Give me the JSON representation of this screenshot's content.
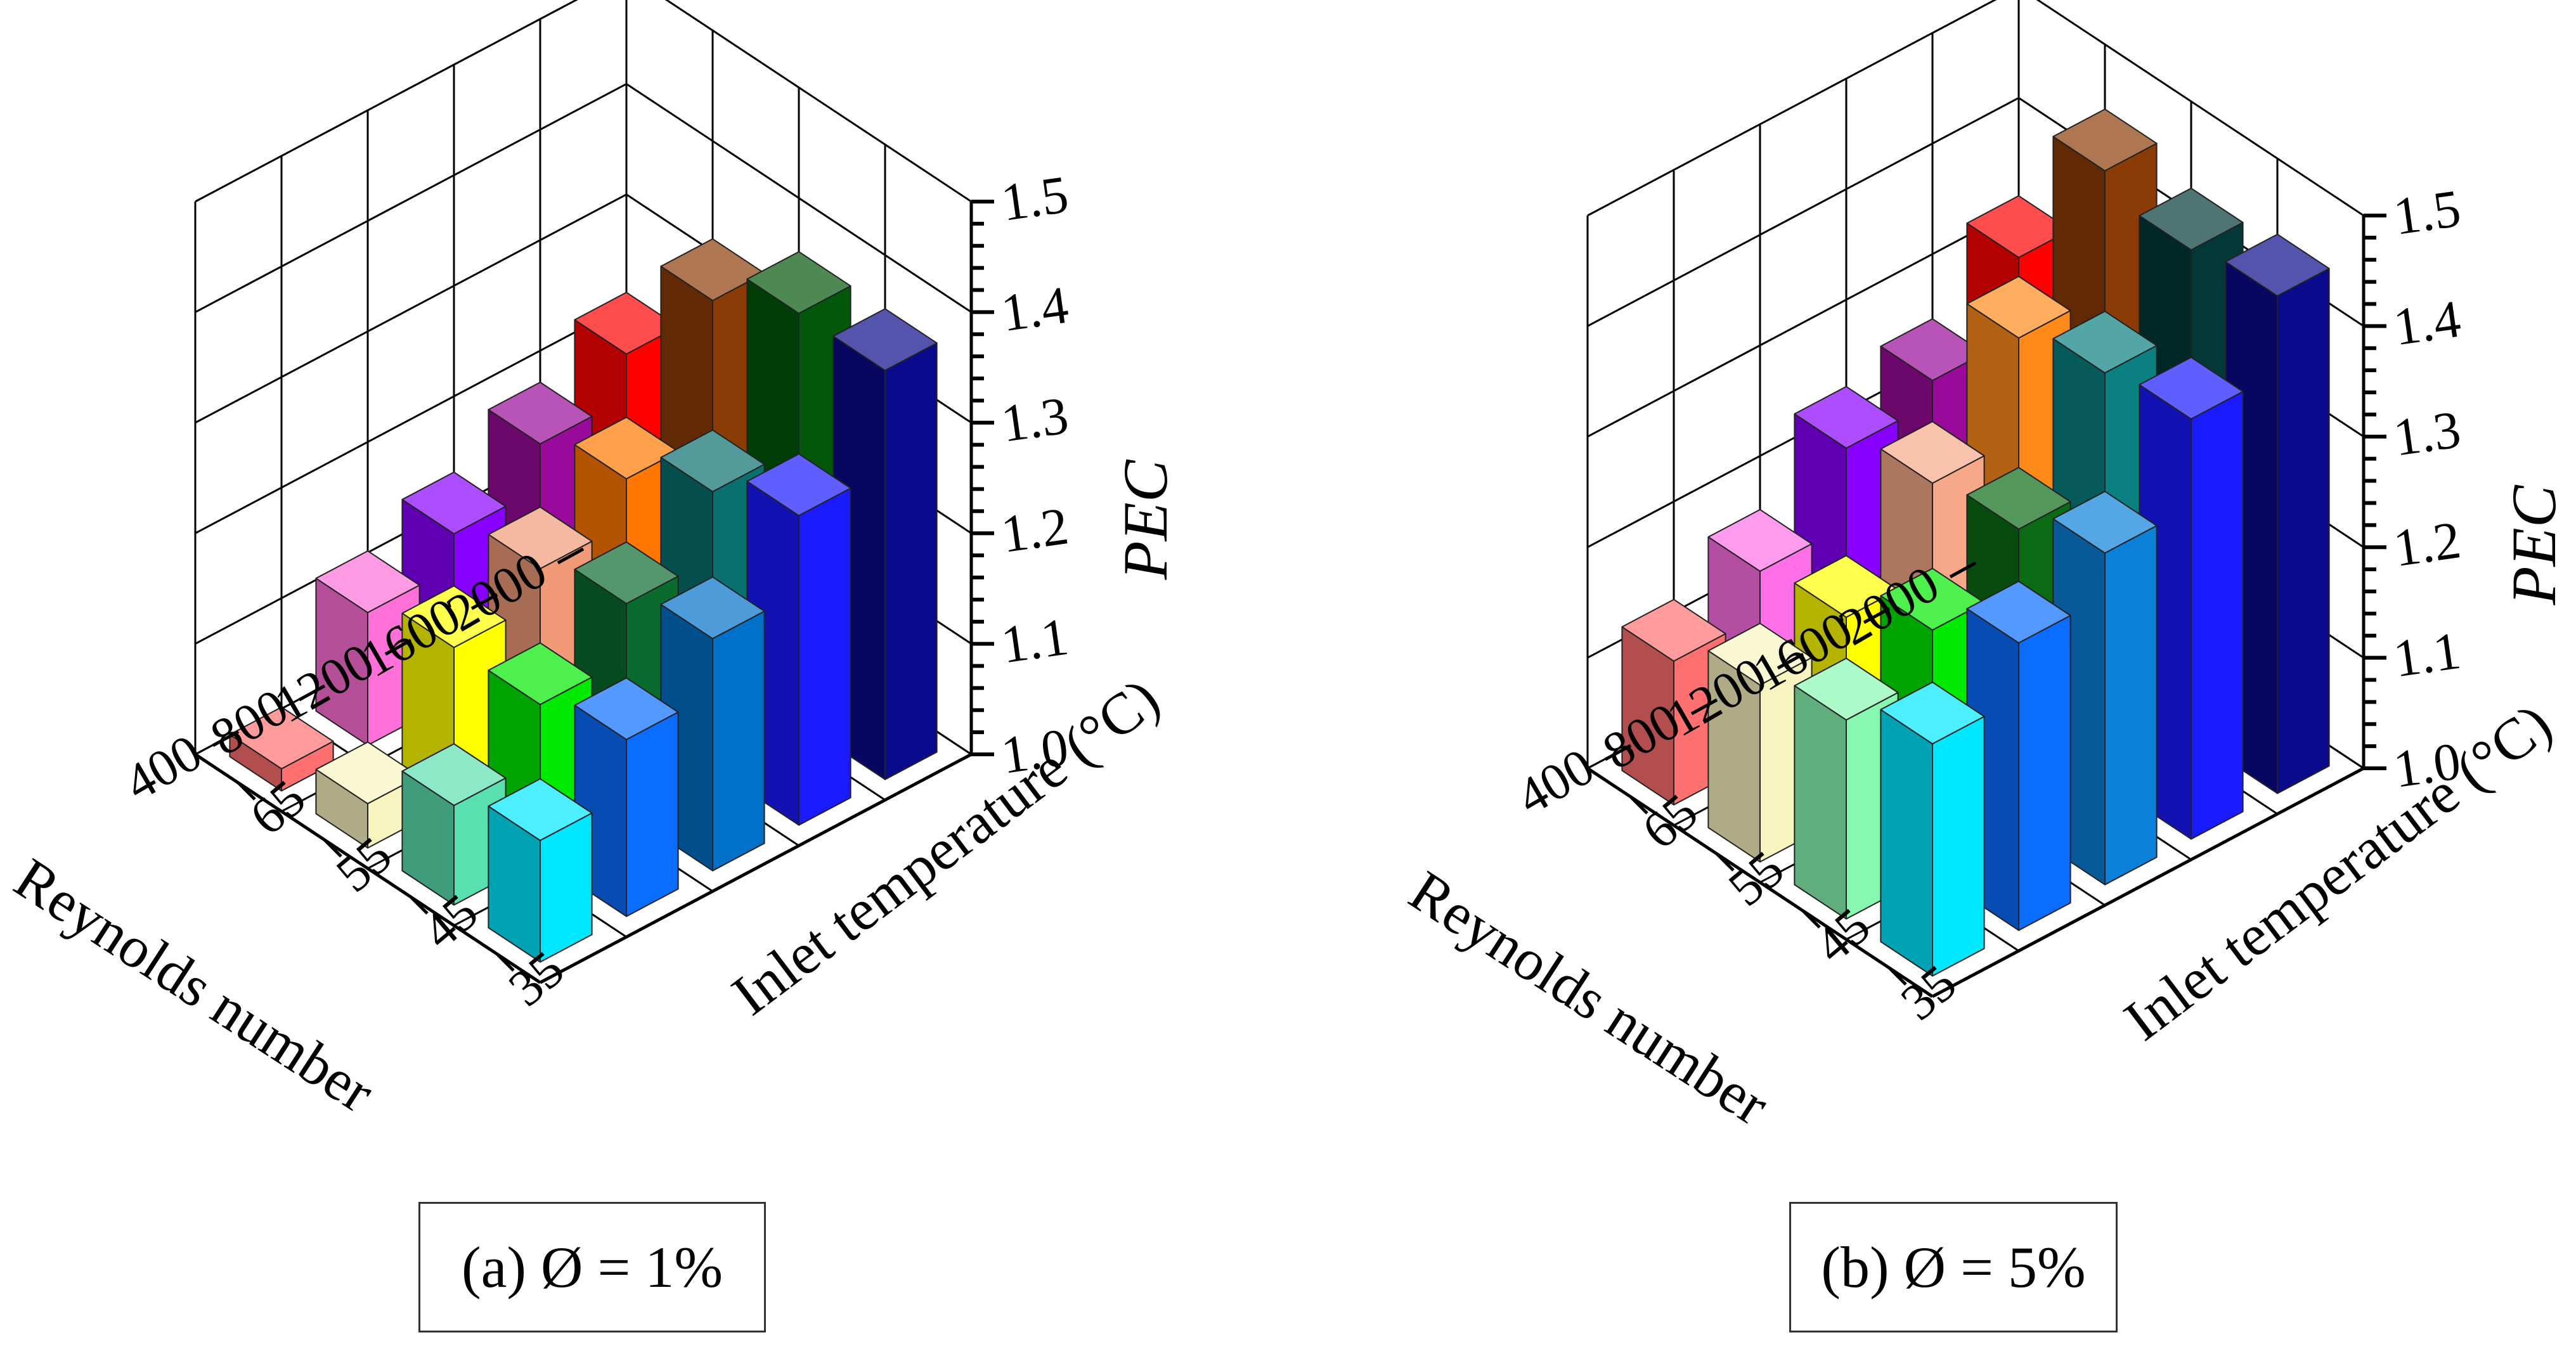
{
  "figure": {
    "captions": [
      "(a) Ø = 1%",
      "(b) Ø = 5%"
    ]
  },
  "chart_data": [
    {
      "type": "bar3d",
      "title": "(a) Ø = 1%",
      "xlabel": "Reynolds number",
      "ylabel": "Inlet temperature (°C)",
      "zlabel": "PEC",
      "reynolds": [
        2000,
        1600,
        1200,
        800,
        400
      ],
      "temperatures": [
        35,
        45,
        55,
        65
      ],
      "zlim": [
        1.0,
        1.5
      ],
      "zticks": [
        "1.0",
        "1.1",
        "1.2",
        "1.3",
        "1.4",
        "1.5"
      ],
      "values": [
        [
          1.37,
          1.37,
          1.33,
          1.23
        ],
        [
          1.28,
          1.25,
          1.21,
          1.19
        ],
        [
          1.21,
          1.19,
          1.17,
          1.15
        ],
        [
          1.16,
          1.14,
          1.14,
          1.12
        ],
        [
          1.11,
          1.09,
          1.04,
          1.02
        ]
      ],
      "colors": [
        [
          "#0a0a8c",
          "#02570a",
          "#8b3b06",
          "#ff0000"
        ],
        [
          "#1a1aff",
          "#0a6f6f",
          "#ff7700",
          "#9a0a9a"
        ],
        [
          "#0070c8",
          "#0a6b2e",
          "#f09a78",
          "#8800ff"
        ],
        [
          "#0a6dff",
          "#00ea00",
          "#ffff00",
          "#ff70d8"
        ],
        [
          "#00e8ff",
          "#5ae0b0",
          "#f8f4c0",
          "#ff7070"
        ]
      ]
    },
    {
      "type": "bar3d",
      "title": "(b) Ø = 5%",
      "xlabel": "Reynolds number",
      "ylabel": "Inlet temperature (°C)",
      "zlabel": "PEC",
      "reynolds": [
        2000,
        1600,
        1200,
        800,
        400
      ],
      "temperatures": [
        35,
        45,
        55,
        65
      ],
      "zlim": [
        1.0,
        1.5
      ],
      "zticks": [
        "1.0",
        "1.1",
        "1.2",
        "1.3",
        "1.4",
        "1.5"
      ],
      "values": [
        [
          1.45,
          1.44,
          1.46,
          1.33
        ],
        [
          1.38,
          1.37,
          1.35,
          1.26
        ],
        [
          1.3,
          1.27,
          1.26,
          1.24
        ],
        [
          1.26,
          1.22,
          1.18,
          1.17
        ],
        [
          1.21,
          1.18,
          1.16,
          1.13
        ]
      ],
      "colors": [
        [
          "#0a0a8c",
          "#023838",
          "#8b3b06",
          "#ff0000"
        ],
        [
          "#1a1aff",
          "#0a8080",
          "#ff8a1a",
          "#9a0a9a"
        ],
        [
          "#0a80d8",
          "#0a6b14",
          "#f7a888",
          "#8800ff"
        ],
        [
          "#0a6dff",
          "#00ea00",
          "#ffff00",
          "#ff70e8"
        ],
        [
          "#00e8ff",
          "#88f8b0",
          "#f8f4c0",
          "#ff7070"
        ]
      ]
    }
  ]
}
